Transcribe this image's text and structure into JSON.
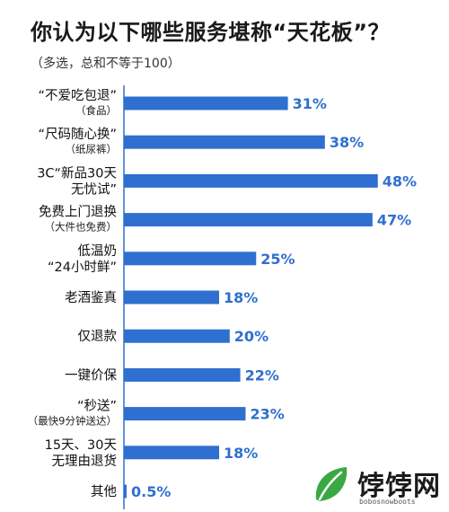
{
  "title": "你认为以下哪些服务堪称“天花板”？",
  "subtitle": "（多选，总和不等于100）",
  "watermark": {
    "text": "饽饽网",
    "url": "bobosnowboots"
  },
  "colors": {
    "bar": "#2f6fd0",
    "value_text": "#2f6fd0",
    "axis": "#2f6fd0"
  },
  "chart_data": {
    "type": "bar",
    "orientation": "horizontal",
    "title": "你认为以下哪些服务堪称“天花板”？",
    "subtitle": "（多选，总和不等于100）",
    "categories": [
      [
        "“不爱吃包退”",
        "（食品）"
      ],
      [
        "“尺码随心换”",
        "（纸尿裤）"
      ],
      [
        "3C“新品30天",
        "无忧试”"
      ],
      [
        "免费上门退换",
        "（大件也免费）"
      ],
      [
        "低温奶",
        "“24小时鲜”"
      ],
      [
        "老酒鉴真"
      ],
      [
        "仅退款"
      ],
      [
        "一键价保"
      ],
      [
        "“秒送”",
        "（最快9分钟送达）"
      ],
      [
        "15天、30天",
        "无理由退货"
      ],
      [
        "其他"
      ]
    ],
    "values": [
      31,
      38,
      48,
      47,
      25,
      18,
      20,
      22,
      23,
      18,
      0.5
    ],
    "value_labels": [
      "31%",
      "38%",
      "48%",
      "47%",
      "25%",
      "18%",
      "20%",
      "22%",
      "23%",
      "18%",
      "0.5%"
    ],
    "xlim": [
      0,
      50
    ],
    "grid": false,
    "legend": "none"
  }
}
